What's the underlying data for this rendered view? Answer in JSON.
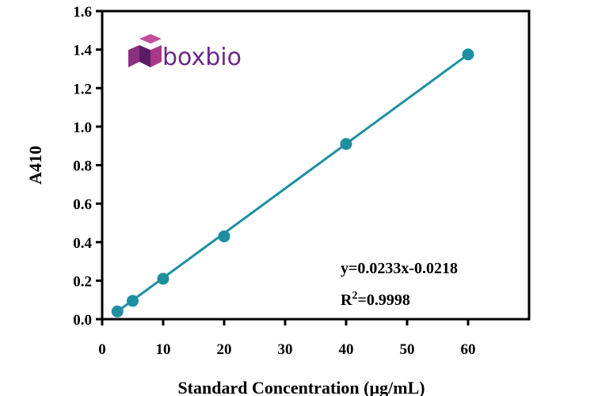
{
  "chart_data": {
    "type": "scatter",
    "xlabel": "Standard Concentration (µg/mL)",
    "ylabel": "A410",
    "xlim": [
      0,
      70
    ],
    "ylim": [
      0,
      1.6
    ],
    "xticks": [
      0,
      10,
      20,
      30,
      40,
      50,
      60
    ],
    "yticks": [
      0.0,
      0.2,
      0.4,
      0.6,
      0.8,
      1.0,
      1.2,
      1.4,
      1.6
    ],
    "x": [
      2.5,
      5,
      10,
      20,
      40,
      60
    ],
    "y": [
      0.04,
      0.095,
      0.21,
      0.43,
      0.91,
      1.375
    ],
    "fit_line": true,
    "grid": false,
    "annotations": {
      "equation": "y=0.0233x-0.0218",
      "r2_prefix": "R",
      "r2_sup": "2",
      "r2_value": "=0.9998"
    },
    "colors": {
      "series": "#1f8fa0",
      "axis": "#000000"
    }
  },
  "logo": {
    "text": "boxbio",
    "colors": {
      "text": "#6a2a88",
      "cube_top": "#c24f9b",
      "cube_left": "#8d2f7f",
      "cube_right": "#5a1d64"
    }
  }
}
